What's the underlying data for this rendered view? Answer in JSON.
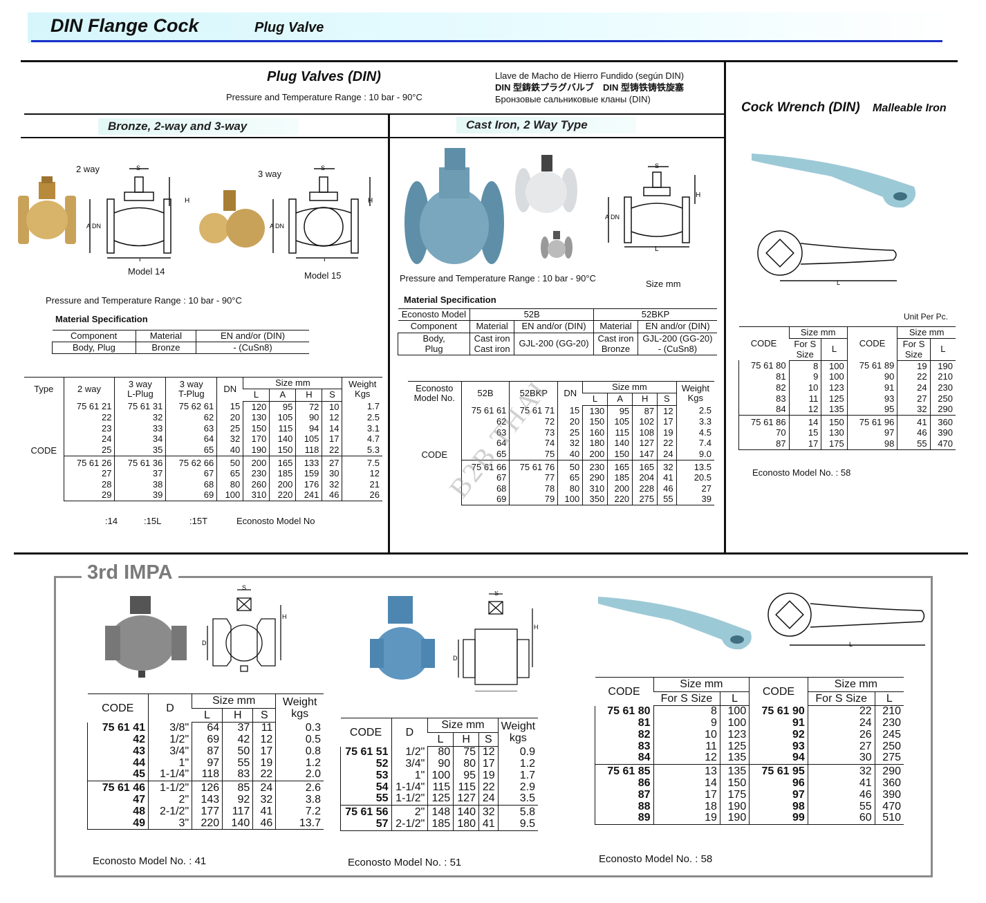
{
  "header": {
    "title": "DIN Flange Cock",
    "subtitle": "Plug Valve"
  },
  "top": {
    "heading": "Plug Valves (DIN)",
    "pressure": "Pressure and Temperature Range : 10 bar - 90°C",
    "translations": [
      "Llave de Macho de Hierro Fundido (según DIN)",
      "DIN 型鋳鉄プラグバルブ　DIN 型铸铁铸铁旋塞",
      "Бронзовые сальниковые кланы (DIN)"
    ]
  },
  "bronze": {
    "band": "Bronze,     2-way and 3-way",
    "label_2way": "2 way",
    "label_3way": "3 way",
    "model14": "Model 14",
    "model15": "Model 15",
    "dim": {
      "s": "S",
      "h": "H",
      "a": "A",
      "dn": "DN",
      "l": "L"
    },
    "pressure": "Pressure and Temperature Range : 10 bar - 90°C",
    "mat_title": "Material Specification",
    "mat": {
      "head": [
        [
          {
            "t": "Component"
          },
          {
            "t": "Material"
          },
          {
            "t": "EN and/or (DIN)"
          }
        ]
      ],
      "groups": [
        [
          [
            "Body, Plug",
            "Bronze",
            "- (CuSn8)"
          ]
        ]
      ]
    },
    "table": {
      "label": "CODE",
      "head": [
        [
          {
            "t": "Type",
            "rs": 2
          },
          {
            "t": "2 way",
            "rs": 2
          },
          {
            "t": "3 way\nL-Plug",
            "rs": 2
          },
          {
            "t": "3 way\nT-Plug",
            "rs": 2
          },
          {
            "t": "DN",
            "rs": 2
          },
          {
            "t": "Size mm",
            "cs": 4
          },
          {
            "t": "Weight\nKgs",
            "rs": 2
          }
        ],
        [
          {
            "t": "L"
          },
          {
            "t": "A"
          },
          {
            "t": "H"
          },
          {
            "t": "S"
          }
        ]
      ],
      "groups": [
        [
          [
            "75 61 21",
            "75 61 31",
            "75 62 61",
            "15",
            "120",
            "95",
            "72",
            "10",
            "1.7"
          ],
          [
            "22",
            "32",
            "62",
            "20",
            "130",
            "105",
            "90",
            "12",
            "2.5"
          ],
          [
            "23",
            "33",
            "63",
            "25",
            "150",
            "115",
            "94",
            "14",
            "3.1"
          ],
          [
            "24",
            "34",
            "64",
            "32",
            "170",
            "140",
            "105",
            "17",
            "4.7"
          ],
          [
            "25",
            "35",
            "65",
            "40",
            "190",
            "150",
            "118",
            "22",
            "5.3"
          ]
        ],
        [
          [
            "75 61 26",
            "75 61 36",
            "75 62 66",
            "50",
            "200",
            "165",
            "133",
            "27",
            "7.5"
          ],
          [
            "27",
            "37",
            "67",
            "65",
            "230",
            "185",
            "159",
            "30",
            "12"
          ],
          [
            "28",
            "38",
            "68",
            "80",
            "260",
            "200",
            "176",
            "32",
            "21"
          ],
          [
            "29",
            "39",
            "69",
            "100",
            "310",
            "220",
            "241",
            "46",
            "26"
          ]
        ]
      ]
    },
    "footer": [
      ":14",
      ":15L",
      ":15T",
      "Econosto  Model No"
    ]
  },
  "castiron": {
    "band": "Cast Iron,     2 Way Type",
    "pressure": "Pressure and Temperature Range : 10 bar - 90°C",
    "size_note": "Size mm",
    "mat_title": "Material Specification",
    "mat": {
      "head": [
        [
          {
            "t": "Econosto Model"
          },
          {
            "t": "52B",
            "cs": 2
          },
          {
            "t": "52BKP",
            "cs": 2
          }
        ],
        [
          {
            "t": "Component"
          },
          {
            "t": "Material"
          },
          {
            "t": "EN and/or (DIN)"
          },
          {
            "t": "Material"
          },
          {
            "t": "EN and/or (DIN)"
          }
        ]
      ],
      "groups": [
        [
          [
            "Body,\nPlug",
            "Cast iron\nCast iron",
            "GJL-200 (GG-20)",
            "Cast iron\nBronze",
            "GJL-200 (GG-20)\n- (CuSn8)"
          ]
        ]
      ]
    },
    "table": {
      "label": "CODE",
      "head": [
        [
          {
            "t": "Econosto\nModel  No.",
            "rs": 2
          },
          {
            "t": "52B",
            "rs": 2
          },
          {
            "t": "52BKP",
            "rs": 2
          },
          {
            "t": "DN",
            "rs": 2
          },
          {
            "t": "Size mm",
            "cs": 4
          },
          {
            "t": "Weight\nKgs",
            "rs": 2
          }
        ],
        [
          {
            "t": "L"
          },
          {
            "t": "A"
          },
          {
            "t": "H"
          },
          {
            "t": "S"
          }
        ]
      ],
      "groups": [
        [
          [
            "75 61 61",
            "75 61 71",
            "15",
            "130",
            "95",
            "87",
            "12",
            "2.5"
          ],
          [
            "62",
            "72",
            "20",
            "150",
            "105",
            "102",
            "17",
            "3.3"
          ],
          [
            "63",
            "73",
            "25",
            "160",
            "115",
            "108",
            "19",
            "4.5"
          ],
          [
            "64",
            "74",
            "32",
            "180",
            "140",
            "127",
            "22",
            "7.4"
          ],
          [
            "65",
            "75",
            "40",
            "200",
            "150",
            "147",
            "24",
            "9.0"
          ]
        ],
        [
          [
            "75 61 66",
            "75 61 76",
            "50",
            "230",
            "165",
            "165",
            "32",
            "13.5"
          ],
          [
            "67",
            "77",
            "65",
            "290",
            "185",
            "204",
            "41",
            "20.5"
          ],
          [
            "68",
            "78",
            "80",
            "310",
            "200",
            "228",
            "46",
            "27"
          ],
          [
            "69",
            "79",
            "100",
            "350",
            "220",
            "275",
            "55",
            "39"
          ]
        ]
      ]
    }
  },
  "wrench": {
    "title": "Cock Wrench (DIN)",
    "subtitle": "Malleable Iron",
    "unit": "Unit Per Pc.",
    "dim_l": "L",
    "table": {
      "head": [
        [
          {
            "t": "CODE",
            "rs": 2
          },
          {
            "t": "Size mm",
            "cs": 2
          },
          {
            "t": "CODE",
            "rs": 2
          },
          {
            "t": "Size mm",
            "cs": 2
          }
        ],
        [
          {
            "t": "For S\nSize"
          },
          {
            "t": "L"
          },
          {
            "t": "For S\nSize"
          },
          {
            "t": "L"
          }
        ]
      ],
      "groups": [
        [
          [
            "75 61 80",
            "8",
            "100",
            "75 61 89",
            "19",
            "190"
          ],
          [
            "81",
            "9",
            "100",
            "90",
            "22",
            "210"
          ],
          [
            "82",
            "10",
            "123",
            "91",
            "24",
            "230"
          ],
          [
            "83",
            "11",
            "125",
            "93",
            "27",
            "250"
          ],
          [
            "84",
            "12",
            "135",
            "95",
            "32",
            "290"
          ]
        ],
        [
          [
            "75 61 86",
            "14",
            "150",
            "75 61 96",
            "41",
            "360"
          ],
          [
            "70",
            "15",
            "130",
            "97",
            "46",
            "390"
          ],
          [
            "87",
            "17",
            "175",
            "98",
            "55",
            "470"
          ]
        ]
      ]
    },
    "footer": "Econosto Model No. : 58"
  },
  "watermark": "B2B THAI",
  "impa": {
    "label": "3rd IMPA",
    "t41": {
      "head": [
        [
          {
            "t": "CODE",
            "rs": 2
          },
          {
            "t": "D",
            "rs": 2
          },
          {
            "t": "Size mm",
            "cs": 3
          },
          {
            "t": "Weight\nkgs",
            "rs": 2
          }
        ],
        [
          {
            "t": "L"
          },
          {
            "t": "H"
          },
          {
            "t": "S"
          }
        ]
      ],
      "groups": [
        [
          [
            "75 61 41",
            "3/8\"",
            "64",
            "37",
            "11",
            "0.3"
          ],
          [
            "42",
            "1/2\"",
            "69",
            "42",
            "12",
            "0.5"
          ],
          [
            "43",
            "3/4\"",
            "87",
            "50",
            "17",
            "0.8"
          ],
          [
            "44",
            "1\"",
            "97",
            "55",
            "19",
            "1.2"
          ],
          [
            "45",
            "1-1/4\"",
            "118",
            "83",
            "22",
            "2.0"
          ]
        ],
        [
          [
            "75 61 46",
            "1-1/2\"",
            "126",
            "85",
            "24",
            "2.6"
          ],
          [
            "47",
            "2\"",
            "143",
            "92",
            "32",
            "3.8"
          ],
          [
            "48",
            "2-1/2\"",
            "177",
            "117",
            "41",
            "7.2"
          ],
          [
            "49",
            "3\"",
            "220",
            "140",
            "46",
            "13.7"
          ]
        ]
      ],
      "footer": "Econosto Model No. : 41"
    },
    "t51": {
      "head": [
        [
          {
            "t": "CODE",
            "rs": 2
          },
          {
            "t": "D",
            "rs": 2
          },
          {
            "t": "Size mm",
            "cs": 3
          },
          {
            "t": "Weight\nkgs",
            "rs": 2
          }
        ],
        [
          {
            "t": "L"
          },
          {
            "t": "H"
          },
          {
            "t": "S"
          }
        ]
      ],
      "groups": [
        [
          [
            "75 61 51",
            "1/2\"",
            "80",
            "75",
            "12",
            "0.9"
          ],
          [
            "52",
            "3/4\"",
            "90",
            "80",
            "17",
            "1.2"
          ],
          [
            "53",
            "1\"",
            "100",
            "95",
            "19",
            "1.7"
          ],
          [
            "54",
            "1-1/4\"",
            "115",
            "115",
            "22",
            "2.9"
          ],
          [
            "55",
            "1-1/2\"",
            "125",
            "127",
            "24",
            "3.5"
          ]
        ],
        [
          [
            "75 61 56",
            "2\"",
            "148",
            "140",
            "32",
            "5.8"
          ],
          [
            "57",
            "2-1/2\"",
            "185",
            "180",
            "41",
            "9.5"
          ]
        ]
      ],
      "footer": "Econosto Model No. : 51"
    },
    "t58": {
      "head": [
        [
          {
            "t": "CODE",
            "rs": 2
          },
          {
            "t": "Size mm",
            "cs": 2
          },
          {
            "t": "CODE",
            "rs": 2
          },
          {
            "t": "Size mm",
            "cs": 2
          }
        ],
        [
          {
            "t": "For S Size"
          },
          {
            "t": "L"
          },
          {
            "t": "For S Size"
          },
          {
            "t": "L"
          }
        ]
      ],
      "groups": [
        [
          [
            "75 61 80",
            "8",
            "100",
            "75 61 90",
            "22",
            "210"
          ],
          [
            "81",
            "9",
            "100",
            "91",
            "24",
            "230"
          ],
          [
            "82",
            "10",
            "123",
            "92",
            "26",
            "245"
          ],
          [
            "83",
            "11",
            "125",
            "93",
            "27",
            "250"
          ],
          [
            "84",
            "12",
            "135",
            "94",
            "30",
            "275"
          ]
        ],
        [
          [
            "75 61 85",
            "13",
            "135",
            "75 61 95",
            "32",
            "290"
          ],
          [
            "86",
            "14",
            "150",
            "96",
            "41",
            "360"
          ],
          [
            "87",
            "17",
            "175",
            "97",
            "46",
            "390"
          ],
          [
            "88",
            "18",
            "190",
            "98",
            "55",
            "470"
          ],
          [
            "89",
            "19",
            "190",
            "99",
            "60",
            "510"
          ]
        ]
      ],
      "footer": "Econosto Model No. : 58"
    }
  }
}
